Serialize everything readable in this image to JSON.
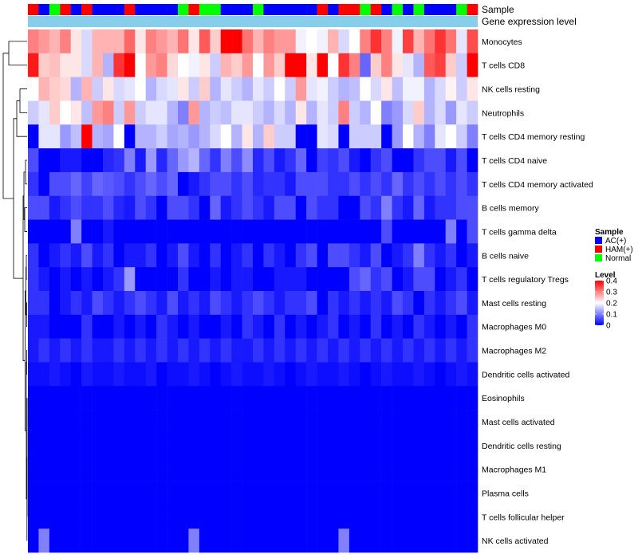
{
  "chart_data": {
    "type": "heatmap",
    "title": "",
    "annotation_labels": {
      "sample": "Sample",
      "expression": "Gene expression level"
    },
    "rows": [
      "Monocytes",
      "T cells CD8",
      "NK cells resting",
      "Neutrophils",
      "T cells CD4 memory resting",
      "T cells CD4 naive",
      "T cells CD4 memory activated",
      "B cells memory",
      "T cells gamma delta",
      "B cells naive",
      "T cells regulatory  Tregs",
      "Mast cells resting",
      "Macrophages M0",
      "Macrophages M2",
      "Dendritic cells activated",
      "Eosinophils",
      "Mast cells activated",
      "Dendritic cells resting",
      "Macrophages M1",
      "Plasma cells",
      "T cells follicular helper",
      "NK cells activated"
    ],
    "sample_groups": [
      "H",
      "A",
      "N",
      "H",
      "A",
      "H",
      "A",
      "A",
      "A",
      "H",
      "A",
      "A",
      "A",
      "A",
      "N",
      "H",
      "N",
      "N",
      "A",
      "A",
      "A",
      "N",
      "A",
      "A",
      "A",
      "A",
      "A",
      "H",
      "A",
      "H",
      "H",
      "N",
      "H",
      "A",
      "N",
      "A",
      "N",
      "A",
      "A",
      "A",
      "N",
      "H"
    ],
    "sample_legend": {
      "title": "Sample",
      "entries": [
        {
          "key": "A",
          "label": "AC(+)",
          "color": "#0000ff"
        },
        {
          "key": "H",
          "label": "HAM(+)",
          "color": "#ff0000"
        },
        {
          "key": "N",
          "label": "Normal",
          "color": "#00ff00"
        }
      ]
    },
    "expression_color": "#87ceeb",
    "value_legend": {
      "title": "Level",
      "ticks": [
        0.4,
        0.3,
        0.2,
        0.1,
        0
      ],
      "tick_labels": [
        "0.4",
        "0.3",
        "0.2",
        "0.1",
        "0"
      ],
      "min": 0,
      "max": 0.4,
      "colors": {
        "low": "#0000ff",
        "mid": "#ffffff",
        "high": "#ff0000"
      },
      "midpoint": 0.2
    },
    "values": [
      [
        0.3,
        0.28,
        0.26,
        0.3,
        0.22,
        0.17,
        0.26,
        0.26,
        0.26,
        0.32,
        0.22,
        0.3,
        0.28,
        0.26,
        0.31,
        0.22,
        0.33,
        0.24,
        0.4,
        0.4,
        0.31,
        0.26,
        0.3,
        0.28,
        0.28,
        0.19,
        0.2,
        0.19,
        0.26,
        0.17,
        0.2,
        0.3,
        0.36,
        0.3,
        0.19,
        0.35,
        0.26,
        0.31,
        0.36,
        0.31,
        0.18,
        0.34
      ],
      [
        0.38,
        0.24,
        0.25,
        0.22,
        0.22,
        0.17,
        0.26,
        0.14,
        0.36,
        0.4,
        0.2,
        0.28,
        0.3,
        0.23,
        0.2,
        0.19,
        0.22,
        0.16,
        0.26,
        0.24,
        0.28,
        0.2,
        0.28,
        0.24,
        0.4,
        0.4,
        0.22,
        0.4,
        0.2,
        0.36,
        0.3,
        0.08,
        0.24,
        0.3,
        0.22,
        0.18,
        0.14,
        0.33,
        0.35,
        0.24,
        0.16,
        0.4
      ],
      [
        0.2,
        0.26,
        0.24,
        0.23,
        0.14,
        0.26,
        0.16,
        0.22,
        0.17,
        0.18,
        0.2,
        0.14,
        0.17,
        0.18,
        0.22,
        0.16,
        0.24,
        0.14,
        0.18,
        0.16,
        0.14,
        0.18,
        0.16,
        0.2,
        0.16,
        0.28,
        0.18,
        0.19,
        0.16,
        0.14,
        0.15,
        0.2,
        0.17,
        0.22,
        0.15,
        0.19,
        0.19,
        0.14,
        0.17,
        0.21,
        0.16,
        0.22
      ],
      [
        0.16,
        0.18,
        0.24,
        0.2,
        0.22,
        0.15,
        0.28,
        0.3,
        0.16,
        0.28,
        0.16,
        0.18,
        0.18,
        0.14,
        0.1,
        0.28,
        0.14,
        0.16,
        0.15,
        0.18,
        0.18,
        0.16,
        0.14,
        0.17,
        0.14,
        0.22,
        0.14,
        0.18,
        0.16,
        0.3,
        0.16,
        0.14,
        0.2,
        0.1,
        0.12,
        0.17,
        0.24,
        0.14,
        0.17,
        0.12,
        0.18,
        0.16
      ],
      [
        0.0,
        0.18,
        0.18,
        0.12,
        0.15,
        0.4,
        0.14,
        0.13,
        0.2,
        0.0,
        0.14,
        0.14,
        0.16,
        0.13,
        0.14,
        0.12,
        0.14,
        0.17,
        0.2,
        0.14,
        0.22,
        0.14,
        0.24,
        0.16,
        0.16,
        0.0,
        0.0,
        0.18,
        0.17,
        0.0,
        0.16,
        0.16,
        0.16,
        0.0,
        0.12,
        0.2,
        0.14,
        0.1,
        0.18,
        0.2,
        0.16,
        0.1
      ],
      [
        0.06,
        0.0,
        0.0,
        0.02,
        0.02,
        0.0,
        0.0,
        0.03,
        0.04,
        0.1,
        0.02,
        0.12,
        0.03,
        0.08,
        0.12,
        0.14,
        0.08,
        0.04,
        0.1,
        0.06,
        0.11,
        0.03,
        0.06,
        0.02,
        0.04,
        0.08,
        0.0,
        0.05,
        0.04,
        0.06,
        0.02,
        0.0,
        0.04,
        0.06,
        0.0,
        0.0,
        0.04,
        0.06,
        0.06,
        0.02,
        0.06,
        0.0
      ],
      [
        0.04,
        0.0,
        0.06,
        0.06,
        0.08,
        0.05,
        0.08,
        0.07,
        0.06,
        0.04,
        0.06,
        0.08,
        0.06,
        0.08,
        0.0,
        0.02,
        0.04,
        0.06,
        0.06,
        0.04,
        0.06,
        0.03,
        0.04,
        0.04,
        0.02,
        0.06,
        0.06,
        0.06,
        0.04,
        0.04,
        0.06,
        0.04,
        0.06,
        0.04,
        0.08,
        0.04,
        0.06,
        0.04,
        0.06,
        0.04,
        0.06,
        0.04
      ],
      [
        0.06,
        0.06,
        0.02,
        0.04,
        0.06,
        0.04,
        0.04,
        0.06,
        0.03,
        0.02,
        0.06,
        0.04,
        0.0,
        0.06,
        0.06,
        0.04,
        0.0,
        0.08,
        0.02,
        0.04,
        0.06,
        0.04,
        0.02,
        0.06,
        0.06,
        0.0,
        0.06,
        0.04,
        0.04,
        0.0,
        0.0,
        0.06,
        0.04,
        0.1,
        0.04,
        0.02,
        0.08,
        0.02,
        0.04,
        0.04,
        0.06,
        0.06
      ],
      [
        0.0,
        0.0,
        0.0,
        0.0,
        0.1,
        0.0,
        0.0,
        0.02,
        0.0,
        0.0,
        0.0,
        0.0,
        0.0,
        0.0,
        0.0,
        0.0,
        0.0,
        0.0,
        0.0,
        0.0,
        0.0,
        0.0,
        0.0,
        0.0,
        0.0,
        0.0,
        0.0,
        0.0,
        0.0,
        0.0,
        0.0,
        0.0,
        0.0,
        0.06,
        0.0,
        0.0,
        0.0,
        0.0,
        0.0,
        0.1,
        0.0,
        0.06
      ],
      [
        0.04,
        0.0,
        0.02,
        0.04,
        0.02,
        0.06,
        0.02,
        0.04,
        0.0,
        0.02,
        0.02,
        0.04,
        0.0,
        0.02,
        0.06,
        0.02,
        0.0,
        0.04,
        0.0,
        0.02,
        0.04,
        0.0,
        0.04,
        0.02,
        0.0,
        0.04,
        0.06,
        0.0,
        0.06,
        0.06,
        0.04,
        0.02,
        0.06,
        0.0,
        0.02,
        0.04,
        0.1,
        0.04,
        0.02,
        0.04,
        0.0,
        0.02
      ],
      [
        0.04,
        0.02,
        0.0,
        0.02,
        0.0,
        0.02,
        0.0,
        0.02,
        0.04,
        0.12,
        0.0,
        0.0,
        0.0,
        0.0,
        0.04,
        0.0,
        0.0,
        0.02,
        0.0,
        0.02,
        0.02,
        0.0,
        0.0,
        0.02,
        0.02,
        0.02,
        0.0,
        0.0,
        0.0,
        0.0,
        0.06,
        0.08,
        0.04,
        0.06,
        0.0,
        0.02,
        0.06,
        0.06,
        0.0,
        0.02,
        0.04,
        0.0
      ],
      [
        0.04,
        0.04,
        0.0,
        0.02,
        0.04,
        0.02,
        0.06,
        0.04,
        0.02,
        0.04,
        0.06,
        0.04,
        0.02,
        0.06,
        0.02,
        0.04,
        0.02,
        0.06,
        0.04,
        0.02,
        0.04,
        0.06,
        0.04,
        0.02,
        0.04,
        0.04,
        0.06,
        0.0,
        0.04,
        0.02,
        0.04,
        0.02,
        0.04,
        0.02,
        0.06,
        0.04,
        0.0,
        0.04,
        0.02,
        0.04,
        0.06,
        0.02
      ],
      [
        0.02,
        0.02,
        0.0,
        0.0,
        0.0,
        0.04,
        0.0,
        0.0,
        0.02,
        0.0,
        0.02,
        0.0,
        0.04,
        0.02,
        0.0,
        0.02,
        0.0,
        0.0,
        0.02,
        0.0,
        0.04,
        0.02,
        0.0,
        0.04,
        0.0,
        0.02,
        0.0,
        0.02,
        0.04,
        0.0,
        0.02,
        0.0,
        0.04,
        0.0,
        0.02,
        0.0,
        0.04,
        0.02,
        0.0,
        0.02,
        0.0,
        0.04
      ],
      [
        0.02,
        0.04,
        0.02,
        0.04,
        0.02,
        0.04,
        0.02,
        0.02,
        0.04,
        0.02,
        0.04,
        0.02,
        0.04,
        0.02,
        0.04,
        0.02,
        0.04,
        0.02,
        0.04,
        0.02,
        0.02,
        0.04,
        0.02,
        0.04,
        0.02,
        0.04,
        0.02,
        0.04,
        0.02,
        0.04,
        0.02,
        0.04,
        0.02,
        0.04,
        0.02,
        0.04,
        0.02,
        0.04,
        0.02,
        0.04,
        0.02,
        0.04
      ],
      [
        0.01,
        0.01,
        0.02,
        0.01,
        0.0,
        0.02,
        0.01,
        0.01,
        0.02,
        0.01,
        0.01,
        0.02,
        0.0,
        0.01,
        0.01,
        0.02,
        0.01,
        0.0,
        0.01,
        0.02,
        0.01,
        0.01,
        0.02,
        0.01,
        0.0,
        0.01,
        0.02,
        0.01,
        0.01,
        0.02,
        0.01,
        0.0,
        0.01,
        0.02,
        0.01,
        0.01,
        0.02,
        0.01,
        0.0,
        0.01,
        0.02,
        0.01
      ],
      [
        0,
        0,
        0,
        0,
        0,
        0,
        0,
        0,
        0,
        0,
        0,
        0,
        0,
        0,
        0,
        0,
        0,
        0,
        0,
        0,
        0,
        0,
        0,
        0,
        0,
        0,
        0,
        0,
        0,
        0,
        0,
        0,
        0,
        0,
        0,
        0,
        0,
        0,
        0,
        0,
        0,
        0
      ],
      [
        0,
        0,
        0,
        0,
        0,
        0,
        0,
        0,
        0,
        0,
        0,
        0,
        0,
        0,
        0,
        0,
        0,
        0,
        0,
        0,
        0,
        0,
        0,
        0,
        0,
        0,
        0,
        0,
        0,
        0,
        0,
        0,
        0,
        0,
        0,
        0,
        0,
        0,
        0,
        0,
        0,
        0
      ],
      [
        0,
        0,
        0,
        0,
        0,
        0,
        0,
        0,
        0,
        0,
        0,
        0,
        0,
        0,
        0,
        0,
        0,
        0,
        0,
        0,
        0,
        0,
        0,
        0,
        0,
        0,
        0,
        0,
        0,
        0,
        0,
        0,
        0,
        0,
        0,
        0,
        0,
        0,
        0,
        0,
        0,
        0
      ],
      [
        0,
        0,
        0,
        0,
        0,
        0,
        0,
        0,
        0,
        0,
        0,
        0,
        0,
        0,
        0,
        0,
        0,
        0,
        0,
        0,
        0,
        0,
        0,
        0,
        0,
        0,
        0,
        0,
        0,
        0,
        0,
        0,
        0,
        0,
        0,
        0,
        0,
        0,
        0,
        0,
        0,
        0
      ],
      [
        0,
        0,
        0,
        0,
        0,
        0,
        0,
        0,
        0,
        0,
        0,
        0,
        0,
        0,
        0,
        0,
        0,
        0,
        0,
        0,
        0,
        0,
        0,
        0,
        0,
        0,
        0,
        0,
        0,
        0,
        0,
        0,
        0,
        0,
        0,
        0,
        0,
        0,
        0,
        0,
        0,
        0
      ],
      [
        0,
        0,
        0,
        0,
        0,
        0,
        0,
        0,
        0,
        0,
        0,
        0,
        0,
        0,
        0,
        0,
        0,
        0,
        0,
        0,
        0,
        0,
        0,
        0,
        0,
        0,
        0,
        0,
        0,
        0,
        0,
        0,
        0,
        0,
        0,
        0,
        0,
        0,
        0,
        0,
        0,
        0
      ],
      [
        0.0,
        0.1,
        0.0,
        0.0,
        0.0,
        0.0,
        0.0,
        0.0,
        0.0,
        0.0,
        0.0,
        0.0,
        0.0,
        0.0,
        0.0,
        0.1,
        0.0,
        0.0,
        0.0,
        0.0,
        0.0,
        0.0,
        0.0,
        0.0,
        0.0,
        0.0,
        0.0,
        0.0,
        0.0,
        0.1,
        0.0,
        0.0,
        0.0,
        0.0,
        0.0,
        0.0,
        0.0,
        0.0,
        0.0,
        0.0,
        0.0,
        0.0
      ]
    ],
    "dendrogram": {
      "leaf_order": [
        0,
        1,
        2,
        3,
        4,
        5,
        6,
        7,
        8,
        9,
        10,
        11,
        12,
        13,
        14,
        15,
        16,
        17,
        18,
        19,
        20,
        21
      ]
    }
  }
}
